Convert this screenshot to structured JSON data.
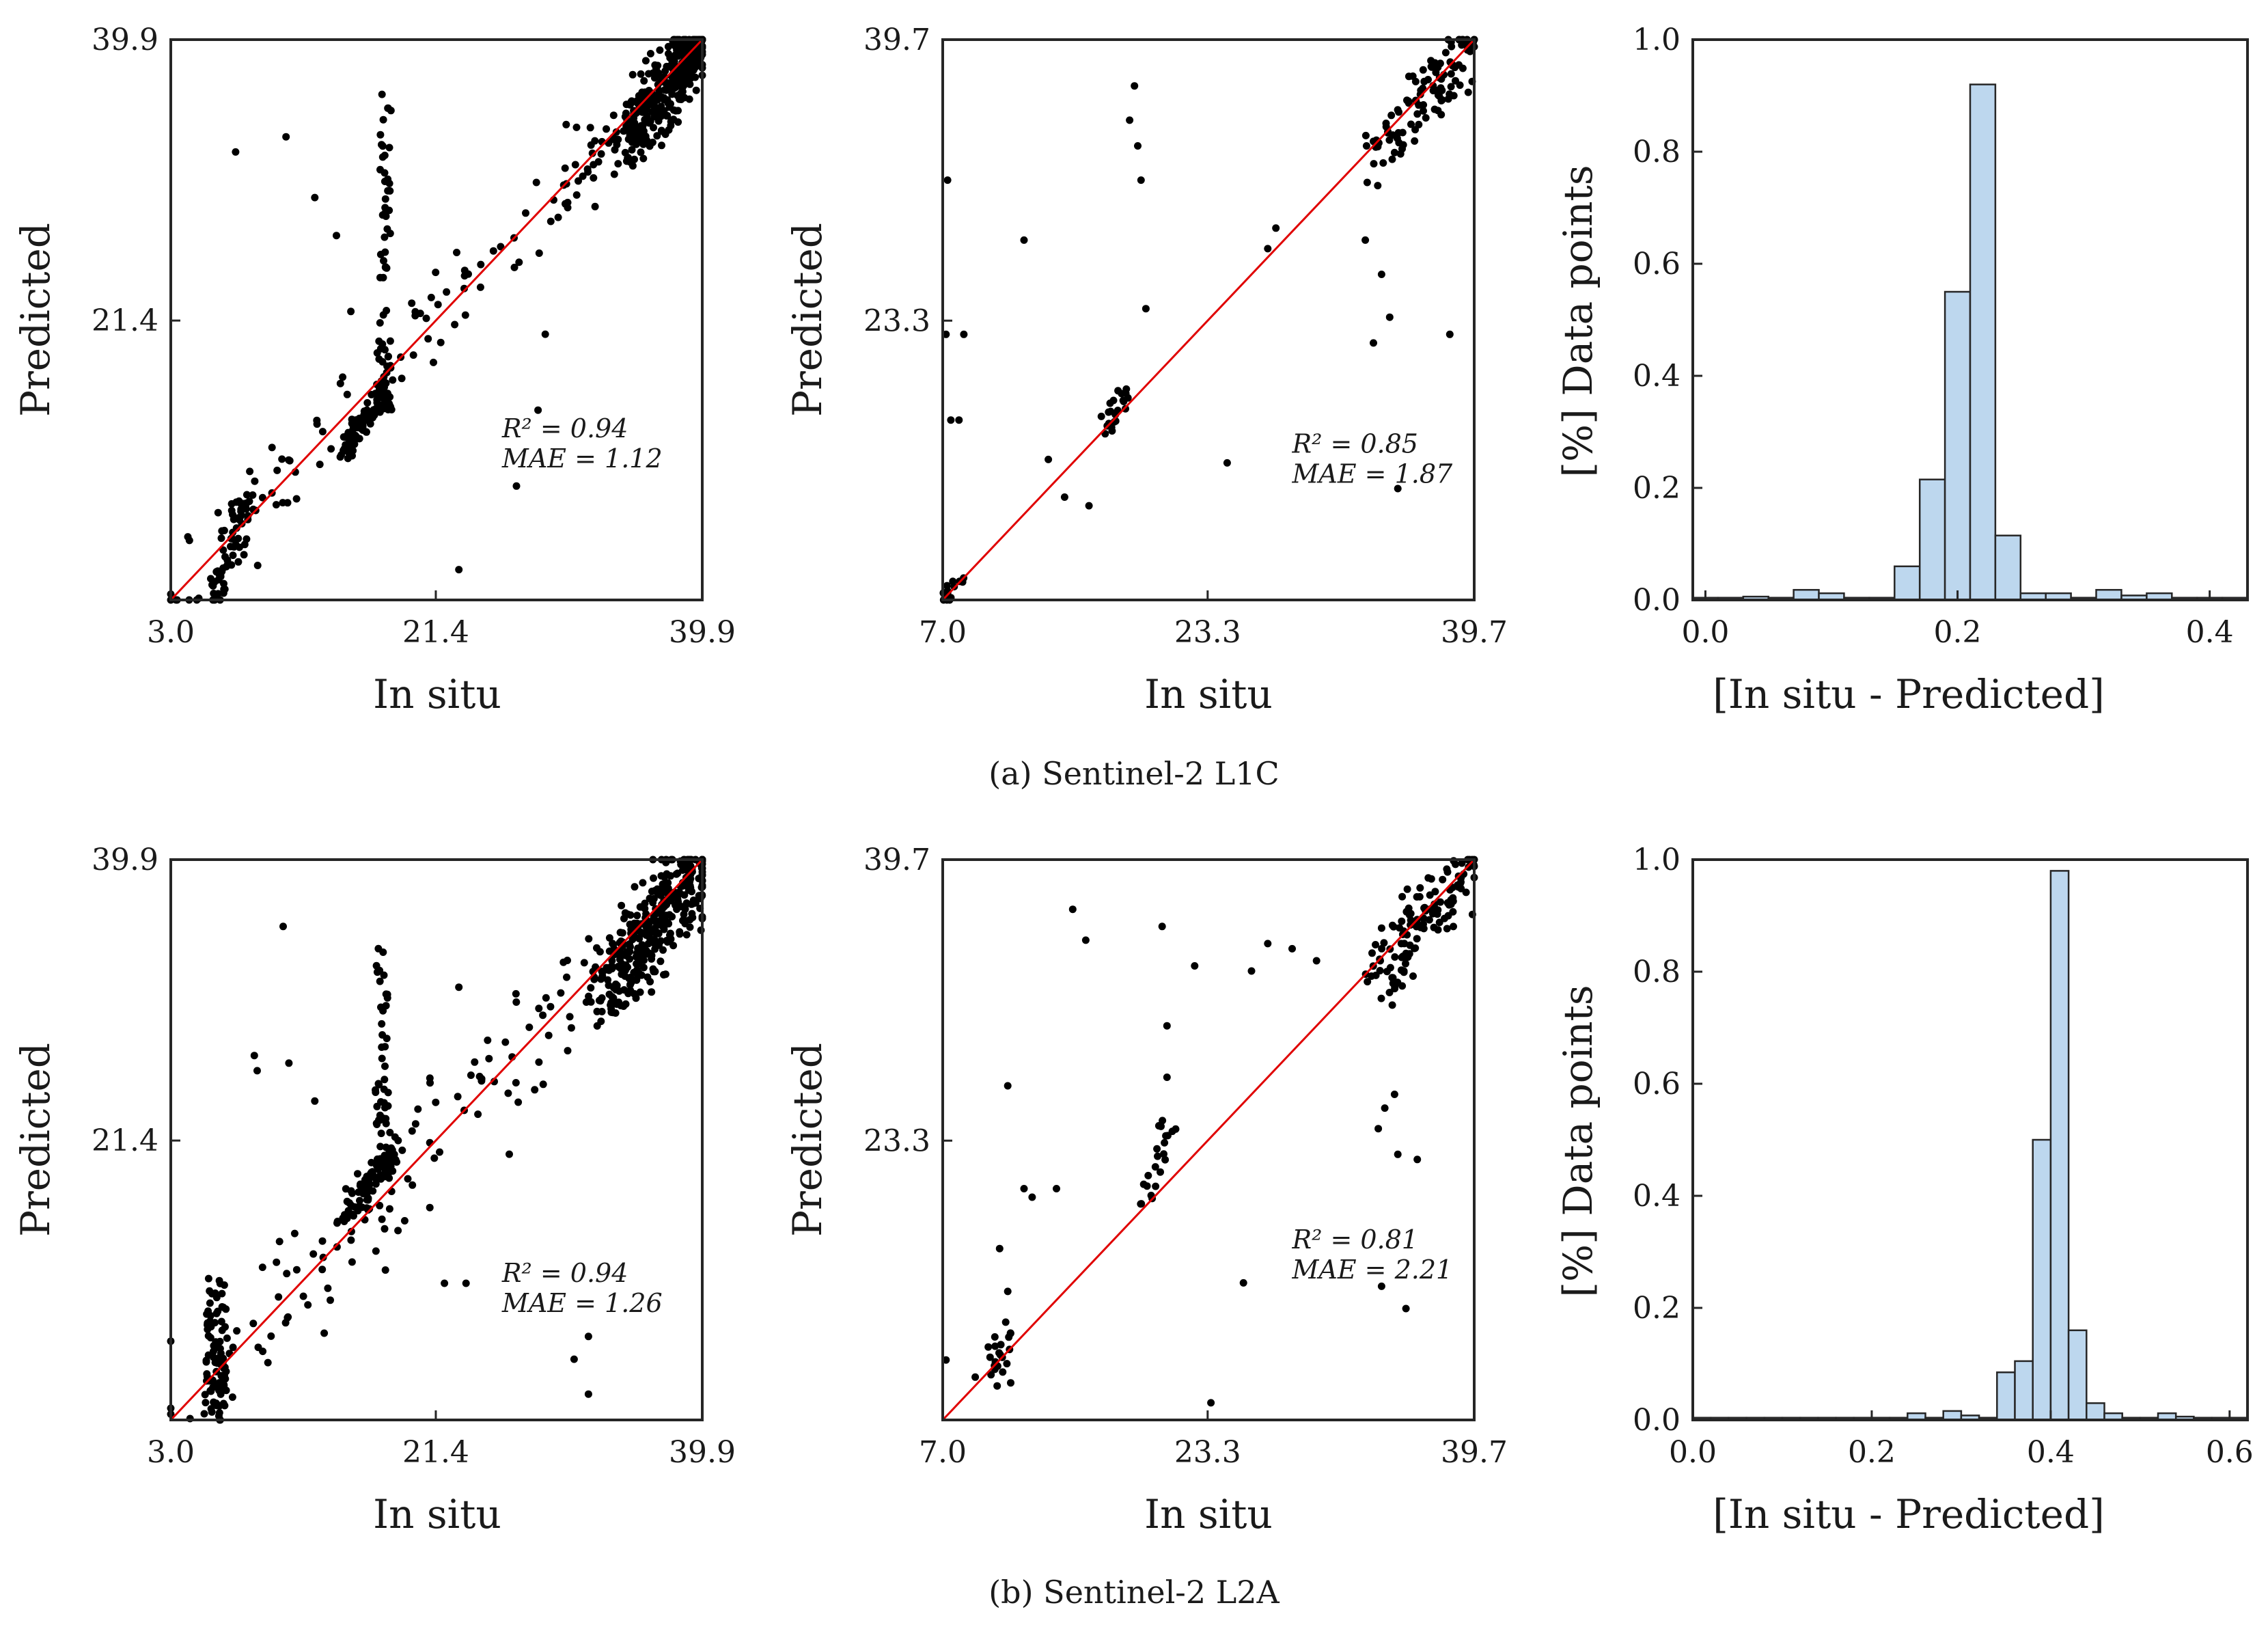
{
  "colors": {
    "points": "#000000",
    "identity_line": "#e00000",
    "bar_fill": "#bdd7ee",
    "axes": "#262626"
  },
  "captions": {
    "top": "(a) Sentinel-2 L1C",
    "bottom": "(b) Sentinel-2 L2A"
  },
  "chart_data": [
    {
      "id": "l1c-scatter-1",
      "type": "scatter",
      "xlabel": "In situ",
      "ylabel": "Predicted",
      "xlim": [
        3.0,
        39.9
      ],
      "ylim": [
        3.0,
        39.9
      ],
      "xticks": [
        "3.0",
        "21.4",
        "39.9"
      ],
      "yticks": [
        "21.4",
        "39.9"
      ],
      "tickvals": [
        3.0,
        21.4,
        39.9
      ],
      "r2_label": "R² = 0.94",
      "mae_label": "MAE = 1.12",
      "annot_at": [
        26.0,
        13.7
      ],
      "clusters": [
        {
          "seed": 11,
          "n": 320,
          "x": [
            34.5,
            39.9
          ],
          "y": [
            33.0,
            39.9
          ],
          "noise": 1.8
        },
        {
          "seed": 12,
          "n": 80,
          "x": [
            15.0,
            18.0
          ],
          "y": [
            12.5,
            17.0
          ],
          "noise": 0.8
        },
        {
          "seed": 13,
          "n": 60,
          "x": [
            17.5,
            18.2
          ],
          "y": [
            15.0,
            36.0
          ],
          "noise": 0.3
        },
        {
          "seed": 14,
          "n": 120,
          "x": [
            3.0,
            36.0
          ],
          "y": [
            3.0,
            36.0
          ],
          "noise": 2.4
        },
        {
          "seed": 15,
          "n": 60,
          "x": [
            6.0,
            8.5
          ],
          "y": [
            3.0,
            10.0
          ],
          "noise": 0.9
        }
      ],
      "points": [
        [
          7.5,
          32.5
        ],
        [
          11.0,
          33.5
        ],
        [
          13.0,
          29.5
        ],
        [
          14.5,
          27.0
        ],
        [
          15.5,
          22.0
        ],
        [
          27.0,
          10.5
        ],
        [
          23.0,
          5.0
        ],
        [
          29.0,
          20.5
        ],
        [
          28.5,
          15.5
        ]
      ]
    },
    {
      "id": "l1c-scatter-2",
      "type": "scatter",
      "xlabel": "In situ",
      "ylabel": "Predicted",
      "xlim": [
        7.0,
        39.7
      ],
      "ylim": [
        7.0,
        39.7
      ],
      "xticks": [
        "7.0",
        "23.3",
        "39.7"
      ],
      "yticks": [
        "23.3",
        "39.7"
      ],
      "tickvals": [
        7.0,
        23.3,
        39.7
      ],
      "r2_label": "R² = 0.85",
      "mae_label": "MAE = 1.87",
      "annot_at": [
        28.5,
        15.6
      ],
      "clusters": [
        {
          "seed": 21,
          "n": 110,
          "x": [
            33.5,
            39.7
          ],
          "y": [
            33.0,
            39.7
          ],
          "noise": 1.4
        },
        {
          "seed": 22,
          "n": 22,
          "x": [
            17.0,
            18.5
          ],
          "y": [
            17.0,
            19.5
          ],
          "noise": 0.6
        },
        {
          "seed": 23,
          "n": 14,
          "x": [
            7.0,
            8.5
          ],
          "y": [
            7.0,
            8.5
          ],
          "noise": 0.4
        }
      ],
      "points": [
        [
          18.8,
          37.0
        ],
        [
          18.5,
          35.0
        ],
        [
          19.0,
          33.5
        ],
        [
          19.2,
          31.5
        ],
        [
          12.0,
          28.0
        ],
        [
          7.3,
          31.5
        ],
        [
          7.2,
          22.5
        ],
        [
          8.3,
          22.5
        ],
        [
          7.5,
          17.5
        ],
        [
          8.0,
          17.5
        ],
        [
          19.5,
          24.0
        ],
        [
          33.0,
          28.0
        ],
        [
          34.0,
          26.0
        ],
        [
          33.5,
          22.0
        ],
        [
          34.5,
          23.5
        ],
        [
          38.2,
          22.5
        ],
        [
          27.0,
          27.5
        ],
        [
          27.5,
          28.7
        ],
        [
          24.5,
          15.0
        ],
        [
          35.0,
          13.5
        ],
        [
          14.5,
          13.0
        ],
        [
          16.0,
          12.5
        ],
        [
          13.5,
          15.2
        ]
      ]
    },
    {
      "id": "l1c-hist",
      "type": "bar",
      "xlabel": "[In situ - Predicted]",
      "ylabel": "[%] Data points",
      "xlim": [
        -0.01,
        0.43
      ],
      "ylim": [
        0,
        1.0
      ],
      "xticks": [
        "0.0",
        "0.2",
        "0.4"
      ],
      "xtickvals": [
        0.0,
        0.2,
        0.4
      ],
      "yticks": [
        "0.0",
        "0.2",
        "0.4",
        "0.6",
        "0.8",
        "1.0"
      ],
      "ytickvals": [
        0.0,
        0.2,
        0.4,
        0.6,
        0.8,
        1.0
      ],
      "bin_edges": [
        -0.01,
        0.01,
        0.03,
        0.05,
        0.07,
        0.09,
        0.11,
        0.13,
        0.15,
        0.17,
        0.19,
        0.21,
        0.23,
        0.25,
        0.27,
        0.29,
        0.31,
        0.33,
        0.35,
        0.37,
        0.39,
        0.41,
        0.43
      ],
      "values": [
        0.004,
        0.0,
        0.006,
        0.0,
        0.018,
        0.012,
        0.0,
        0.004,
        0.06,
        0.215,
        0.55,
        0.92,
        0.115,
        0.012,
        0.012,
        0.0,
        0.018,
        0.008,
        0.012,
        0.004,
        0.004,
        0.004
      ]
    },
    {
      "id": "l2a-scatter-1",
      "type": "scatter",
      "xlabel": "In situ",
      "ylabel": "Predicted",
      "xlim": [
        3.0,
        39.9
      ],
      "ylim": [
        3.0,
        39.9
      ],
      "xticks": [
        "3.0",
        "21.4",
        "39.9"
      ],
      "yticks": [
        "21.4",
        "39.9"
      ],
      "tickvals": [
        3.0,
        21.4,
        39.9
      ],
      "r2_label": "R² = 0.94",
      "mae_label": "MAE = 1.26",
      "annot_at": [
        26.0,
        12.1
      ],
      "clusters": [
        {
          "seed": 31,
          "n": 340,
          "x": [
            33.0,
            39.9
          ],
          "y": [
            31.0,
            39.9
          ],
          "noise": 2.2
        },
        {
          "seed": 32,
          "n": 90,
          "x": [
            15.0,
            18.5
          ],
          "y": [
            16.0,
            21.0
          ],
          "noise": 0.9
        },
        {
          "seed": 33,
          "n": 50,
          "x": [
            17.3,
            18.0
          ],
          "y": [
            18.0,
            35.0
          ],
          "noise": 0.3
        },
        {
          "seed": 34,
          "n": 110,
          "x": [
            3.0,
            35.0
          ],
          "y": [
            3.0,
            35.0
          ],
          "noise": 3.0
        },
        {
          "seed": 35,
          "n": 90,
          "x": [
            5.5,
            6.8
          ],
          "y": [
            3.0,
            12.0
          ],
          "noise": 0.4
        }
      ],
      "points": [
        [
          10.8,
          35.5
        ],
        [
          9.0,
          26.0
        ],
        [
          8.8,
          27.0
        ],
        [
          11.2,
          26.5
        ],
        [
          13.0,
          24.0
        ],
        [
          23.0,
          31.5
        ],
        [
          22.0,
          12.0
        ],
        [
          23.5,
          12.0
        ],
        [
          31.0,
          7.0
        ],
        [
          32.0,
          8.5
        ],
        [
          32.0,
          4.7
        ],
        [
          20.0,
          22.5
        ],
        [
          21.0,
          25.2
        ],
        [
          25.0,
          28.0
        ],
        [
          26.5,
          20.5
        ]
      ]
    },
    {
      "id": "l2a-scatter-2",
      "type": "scatter",
      "xlabel": "In situ",
      "ylabel": "Predicted",
      "xlim": [
        7.0,
        39.7
      ],
      "ylim": [
        7.0,
        39.7
      ],
      "xticks": [
        "7.0",
        "23.3",
        "39.7"
      ],
      "yticks": [
        "23.3",
        "39.7"
      ],
      "tickvals": [
        7.0,
        23.3,
        39.7
      ],
      "r2_label": "R² = 0.81",
      "mae_label": "MAE = 2.21",
      "annot_at": [
        28.5,
        17.0
      ],
      "clusters": [
        {
          "seed": 41,
          "n": 130,
          "x": [
            33.5,
            39.7
          ],
          "y": [
            32.5,
            39.7
          ],
          "noise": 1.6
        },
        {
          "seed": 42,
          "n": 22,
          "x": [
            10.0,
            11.2
          ],
          "y": [
            9.0,
            12.5
          ],
          "noise": 0.5
        },
        {
          "seed": 43,
          "n": 22,
          "x": [
            19.5,
            21.0
          ],
          "y": [
            20.0,
            25.0
          ],
          "noise": 0.8
        }
      ],
      "points": [
        [
          15.0,
          36.8
        ],
        [
          15.8,
          35.0
        ],
        [
          20.5,
          35.8
        ],
        [
          20.8,
          30.0
        ],
        [
          20.8,
          27.0
        ],
        [
          11.0,
          26.5
        ],
        [
          12.0,
          20.5
        ],
        [
          12.5,
          20.0
        ],
        [
          14.0,
          20.5
        ],
        [
          10.5,
          17.0
        ],
        [
          11.0,
          14.5
        ],
        [
          22.5,
          33.5
        ],
        [
          26.0,
          33.2
        ],
        [
          27.0,
          34.8
        ],
        [
          28.5,
          34.5
        ],
        [
          30.0,
          33.8
        ],
        [
          33.8,
          24.0
        ],
        [
          34.2,
          25.2
        ],
        [
          34.8,
          26.0
        ],
        [
          35.0,
          22.5
        ],
        [
          36.2,
          22.2
        ],
        [
          34.0,
          14.8
        ],
        [
          35.5,
          13.5
        ],
        [
          25.5,
          15.0
        ],
        [
          23.5,
          8.0
        ],
        [
          7.2,
          10.5
        ],
        [
          9.0,
          9.5
        ]
      ]
    },
    {
      "id": "l2a-hist",
      "type": "bar",
      "xlabel": "[In situ - Predicted]",
      "ylabel": "[%] Data points",
      "xlim": [
        0.0,
        0.62
      ],
      "ylim": [
        0,
        1.0
      ],
      "xticks": [
        "0.0",
        "0.2",
        "0.4",
        "0.6"
      ],
      "xtickvals": [
        0.0,
        0.2,
        0.4,
        0.6
      ],
      "yticks": [
        "0.0",
        "0.2",
        "0.4",
        "0.6",
        "0.8",
        "1.0"
      ],
      "ytickvals": [
        0.0,
        0.2,
        0.4,
        0.6,
        0.8,
        1.0
      ],
      "bin_edges": [
        0.0,
        0.02,
        0.04,
        0.06,
        0.08,
        0.1,
        0.12,
        0.14,
        0.16,
        0.18,
        0.2,
        0.22,
        0.24,
        0.26,
        0.28,
        0.3,
        0.32,
        0.34,
        0.36,
        0.38,
        0.4,
        0.42,
        0.44,
        0.46,
        0.48,
        0.5,
        0.52,
        0.54,
        0.56,
        0.58,
        0.6,
        0.62
      ],
      "values": [
        0.0,
        0.0,
        0.0,
        0.0,
        0.0,
        0.0,
        0.004,
        0.0,
        0.004,
        0.0,
        0.004,
        0.004,
        0.012,
        0.0,
        0.016,
        0.008,
        0.004,
        0.085,
        0.105,
        0.5,
        0.98,
        0.16,
        0.03,
        0.012,
        0.004,
        0.0,
        0.012,
        0.006,
        0.004,
        0.0,
        0.004
      ]
    }
  ]
}
